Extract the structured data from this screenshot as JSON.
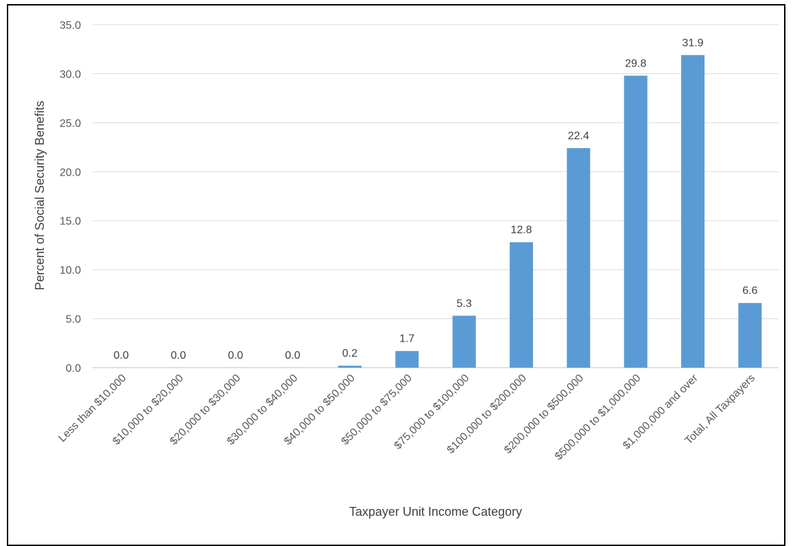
{
  "chart_data": {
    "type": "bar",
    "title": "",
    "xlabel": "Taxpayer Unit Income Category",
    "ylabel": "Percent of Social Security Benefits",
    "ylim": [
      0,
      35
    ],
    "yticks": [
      "0.0",
      "5.0",
      "10.0",
      "15.0",
      "20.0",
      "25.0",
      "30.0",
      "35.0"
    ],
    "grid": "horizontal",
    "legend": "none",
    "bar_color": "#5B9BD5",
    "categories": [
      "Less than $10,000",
      "$10,000 to $20,000",
      "$20,000 to $30,000",
      "$30,000 to $40,000",
      "$40,000 to $50,000",
      "$50,000 to $75,000",
      "$75,000 to $100,000",
      "$100,000 to $200,000",
      "$200,000 to $500,000",
      "$500,000 to $1,000,000",
      "$1,000,000 and over",
      "Total, All Taxpayers"
    ],
    "values": [
      0.0,
      0.0,
      0.0,
      0.0,
      0.2,
      1.7,
      5.3,
      12.8,
      22.4,
      29.8,
      31.9,
      6.6
    ],
    "data_labels": [
      "0.0",
      "0.0",
      "0.0",
      "0.0",
      "0.2",
      "1.7",
      "5.3",
      "12.8",
      "22.4",
      "29.8",
      "31.9",
      "6.6"
    ]
  }
}
